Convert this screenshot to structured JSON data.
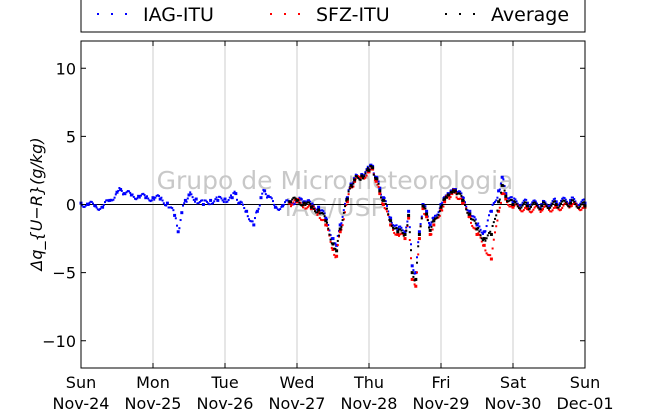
{
  "chart_data": {
    "type": "scatter",
    "title": "",
    "xlabel": "",
    "ylabel": "Δq_{U−R}(g/kg)",
    "ylim": [
      -12,
      12
    ],
    "xlim": [
      0,
      7
    ],
    "yticks": [
      -10,
      -5,
      0,
      5,
      10
    ],
    "xticks": [
      {
        "day": "Sun",
        "date": "Nov-24"
      },
      {
        "day": "Mon",
        "date": "Nov-25"
      },
      {
        "day": "Tue",
        "date": "Nov-26"
      },
      {
        "day": "Wed",
        "date": "Nov-27"
      },
      {
        "day": "Thu",
        "date": "Nov-28"
      },
      {
        "day": "Fri",
        "date": "Nov-29"
      },
      {
        "day": "Sat",
        "date": "Nov-30"
      },
      {
        "day": "Sun",
        "date": "Dec-01"
      }
    ],
    "grid": "vertical",
    "legend_position": "top",
    "watermark": [
      "Grupo de Micrometeorologia",
      "IAG/USP"
    ],
    "series": [
      {
        "name": "IAG-ITU",
        "color": "#0000ff",
        "x": [
          0.0,
          0.1,
          0.2,
          0.3,
          0.4,
          0.5,
          0.55,
          0.6,
          0.7,
          0.8,
          0.9,
          1.0,
          1.1,
          1.2,
          1.3,
          1.35,
          1.4,
          1.45,
          1.5,
          1.6,
          1.7,
          1.8,
          1.9,
          2.0,
          2.1,
          2.15,
          2.2,
          2.3,
          2.4,
          2.45,
          2.5,
          2.55,
          2.6,
          2.7,
          2.8,
          2.9,
          3.0,
          3.05,
          3.1,
          3.2,
          3.3,
          3.4,
          3.5,
          3.55,
          3.6,
          3.7,
          3.75,
          3.8,
          3.9,
          4.0,
          4.05,
          4.1,
          4.15,
          4.2,
          4.3,
          4.4,
          4.5,
          4.55,
          4.6,
          4.65,
          4.7,
          4.75,
          4.8,
          4.85,
          4.9,
          5.0,
          5.05,
          5.1,
          5.15,
          5.2,
          5.3,
          5.4,
          5.5,
          5.6,
          5.7,
          5.8,
          5.85,
          5.9,
          6.0,
          6.2,
          6.4,
          6.6,
          6.8,
          7.0
        ],
        "y": [
          0.1,
          0.0,
          -0.1,
          -0.2,
          0.3,
          0.9,
          1.1,
          0.8,
          0.7,
          0.6,
          0.5,
          0.5,
          0.4,
          0.1,
          -0.8,
          -2.0,
          -0.6,
          0.3,
          0.7,
          0.4,
          0.0,
          0.3,
          0.3,
          0.4,
          0.5,
          0.8,
          0.1,
          -0.5,
          -1.5,
          -0.5,
          0.5,
          1.0,
          0.6,
          -0.2,
          -0.1,
          0.2,
          0.3,
          0.4,
          0.2,
          0.0,
          -0.2,
          -1.0,
          -2.5,
          -3.0,
          -1.5,
          0.5,
          1.5,
          1.9,
          2.2,
          2.6,
          2.8,
          2.0,
          1.2,
          0.5,
          -1.0,
          -1.8,
          -2.0,
          -0.5,
          -4.5,
          -5.0,
          -2.0,
          0.0,
          -0.5,
          -1.5,
          -1.0,
          0.0,
          0.5,
          0.8,
          1.0,
          1.1,
          0.5,
          -0.5,
          -1.5,
          -2.0,
          -0.5,
          1.0,
          2.0,
          0.8,
          0.2,
          0.1,
          0.0,
          0.2,
          0.3,
          0.1
        ]
      },
      {
        "name": "SFZ-ITU",
        "color": "#ff0000",
        "x": [
          2.9,
          3.0,
          3.1,
          3.2,
          3.3,
          3.4,
          3.5,
          3.55,
          3.6,
          3.7,
          3.75,
          3.8,
          3.9,
          4.0,
          4.05,
          4.1,
          4.15,
          4.2,
          4.3,
          4.4,
          4.5,
          4.55,
          4.6,
          4.65,
          4.7,
          4.75,
          4.8,
          4.85,
          4.9,
          5.0,
          5.05,
          5.1,
          5.15,
          5.2,
          5.3,
          5.4,
          5.5,
          5.6,
          5.7,
          5.8,
          5.85,
          5.9,
          6.0,
          6.2,
          6.4,
          6.6,
          6.8,
          7.0
        ],
        "y": [
          0.1,
          0.2,
          0.0,
          -0.3,
          -0.6,
          -1.5,
          -3.3,
          -3.8,
          -2.0,
          0.2,
          1.3,
          1.7,
          2.0,
          2.4,
          2.6,
          1.7,
          0.8,
          0.0,
          -1.5,
          -2.2,
          -2.5,
          -1.0,
          -5.5,
          -6.0,
          -2.5,
          -0.3,
          -0.9,
          -2.2,
          -1.5,
          -0.4,
          0.2,
          0.6,
          0.8,
          0.9,
          0.1,
          -0.9,
          -2.2,
          -3.0,
          -4.0,
          -0.5,
          0.8,
          0.4,
          -0.2,
          -0.3,
          -0.4,
          -0.2,
          -0.1,
          -0.2
        ]
      },
      {
        "name": "Average",
        "color": "#000000",
        "x": [
          2.9,
          3.0,
          3.1,
          3.2,
          3.3,
          3.4,
          3.5,
          3.55,
          3.6,
          3.7,
          3.75,
          3.8,
          3.9,
          4.0,
          4.05,
          4.1,
          4.15,
          4.2,
          4.3,
          4.4,
          4.5,
          4.55,
          4.6,
          4.65,
          4.7,
          4.75,
          4.8,
          4.85,
          4.9,
          5.0,
          5.05,
          5.1,
          5.15,
          5.2,
          5.3,
          5.4,
          5.5,
          5.6,
          5.7,
          5.8,
          5.85,
          5.9,
          6.0,
          6.2,
          6.4,
          6.6,
          6.8,
          7.0
        ],
        "y": [
          0.2,
          0.3,
          0.1,
          -0.2,
          -0.4,
          -1.2,
          -2.9,
          -3.4,
          -1.8,
          0.4,
          1.4,
          1.8,
          2.1,
          2.5,
          2.7,
          1.9,
          1.0,
          0.3,
          -1.2,
          -2.0,
          -2.2,
          -0.8,
          -5.0,
          -5.5,
          -2.2,
          -0.1,
          -0.7,
          -1.9,
          -1.2,
          -0.2,
          0.4,
          0.7,
          0.9,
          1.0,
          0.3,
          -0.7,
          -1.8,
          -2.5,
          -2.2,
          0.2,
          1.4,
          0.6,
          0.0,
          -0.1,
          -0.1,
          0.0,
          0.1,
          -0.1
        ]
      }
    ]
  }
}
